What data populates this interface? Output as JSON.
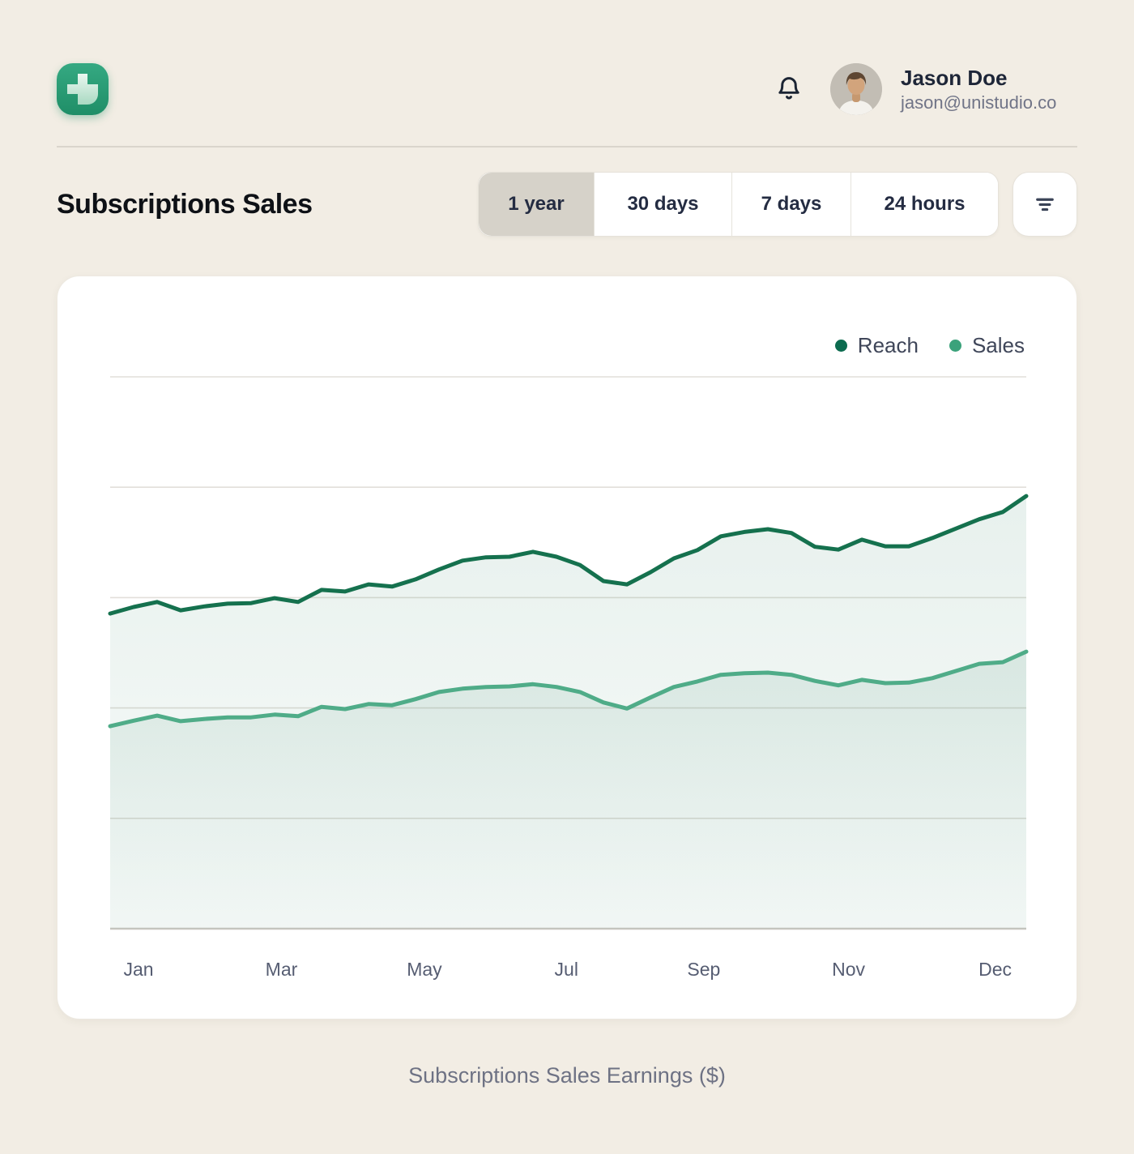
{
  "header": {
    "user": {
      "name": "Jason Doe",
      "email": "jason@unistudio.co"
    },
    "icons": {
      "logo": "plus-cross-icon",
      "notifications": "bell-icon",
      "filter": "filter-lines-icon"
    }
  },
  "toolbar": {
    "title": "Subscriptions Sales",
    "tabs": [
      {
        "label": "1 year",
        "selected": true
      },
      {
        "label": "30 days",
        "selected": false
      },
      {
        "label": "7 days",
        "selected": false
      },
      {
        "label": "24 hours",
        "selected": false
      }
    ]
  },
  "chart_data": {
    "type": "area",
    "title": "Subscriptions Sales",
    "caption": "Subscriptions Sales Earnings ($)",
    "xlabel": "",
    "ylabel": "",
    "ylim": [
      0,
      100
    ],
    "grid": "horizontal",
    "gridline_count": 6,
    "legend_position": "top-right",
    "x_tick_labels": [
      "Jan",
      "Mar",
      "May",
      "Jul",
      "Sep",
      "Nov",
      "Dec"
    ],
    "x_tick_positions_pct": [
      3.1,
      18.7,
      34.3,
      49.8,
      64.8,
      80.6,
      96.6
    ],
    "legend": [
      {
        "name": "Reach",
        "color": "#0C6B4F"
      },
      {
        "name": "Sales",
        "color": "#3BA27B"
      }
    ],
    "series": [
      {
        "name": "Reach",
        "line_color": "#15714E",
        "values": [
          57.1,
          58.3,
          59.2,
          57.7,
          58.4,
          58.9,
          59.0,
          59.9,
          59.2,
          61.4,
          61.1,
          62.4,
          62.0,
          63.3,
          65.1,
          66.7,
          67.3,
          67.4,
          68.3,
          67.4,
          65.9,
          63.0,
          62.4,
          64.6,
          67.1,
          68.6,
          71.1,
          71.9,
          72.4,
          71.7,
          69.2,
          68.7,
          70.5,
          69.3,
          69.3,
          70.8,
          72.5,
          74.2,
          75.5,
          78.4
        ]
      },
      {
        "name": "Sales",
        "line_color": "#4FAC88",
        "values": [
          36.7,
          37.7,
          38.6,
          37.6,
          38.0,
          38.3,
          38.3,
          38.8,
          38.5,
          40.2,
          39.8,
          40.7,
          40.5,
          41.6,
          42.9,
          43.5,
          43.8,
          43.9,
          44.3,
          43.8,
          42.9,
          41.0,
          39.9,
          41.9,
          43.8,
          44.8,
          46.0,
          46.3,
          46.4,
          46.0,
          44.9,
          44.1,
          45.1,
          44.5,
          44.6,
          45.4,
          46.7,
          48.0,
          48.3,
          50.2
        ]
      }
    ]
  }
}
